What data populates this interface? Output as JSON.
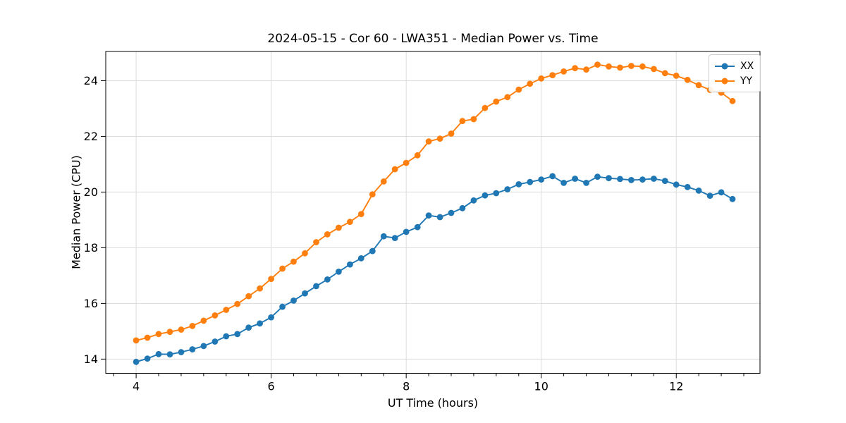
{
  "chart": {
    "title": "2024-05-15 - Cor 60 - LWA351 - Median Power vs. Time",
    "xlabel": "UT Time (hours)",
    "ylabel": "Median Power (CPU)"
  },
  "legend": {
    "items": [
      {
        "label": "XX",
        "color": "#1f77b4"
      },
      {
        "label": "YY",
        "color": "#ff7f0e"
      }
    ]
  },
  "chart_data": {
    "type": "line",
    "title": "2024-05-15 - Cor 60 - LWA351 - Median Power vs. Time",
    "xlabel": "UT Time (hours)",
    "ylabel": "Median Power (CPU)",
    "x": [
      4.0,
      4.167,
      4.333,
      4.5,
      4.667,
      4.833,
      5.0,
      5.167,
      5.333,
      5.5,
      5.667,
      5.833,
      6.0,
      6.167,
      6.333,
      6.5,
      6.667,
      6.833,
      7.0,
      7.167,
      7.333,
      7.5,
      7.667,
      7.833,
      8.0,
      8.167,
      8.333,
      8.5,
      8.667,
      8.833,
      9.0,
      9.167,
      9.333,
      9.5,
      9.667,
      9.833,
      10.0,
      10.167,
      10.333,
      10.5,
      10.667,
      10.833,
      11.0,
      11.167,
      11.333,
      11.5,
      11.667,
      11.833,
      12.0,
      12.167,
      12.333,
      12.5,
      12.667,
      12.833
    ],
    "series": [
      {
        "name": "XX",
        "color": "#1f77b4",
        "marker": "circle",
        "values": [
          13.9,
          14.02,
          14.18,
          14.17,
          14.25,
          14.35,
          14.47,
          14.63,
          14.82,
          14.9,
          15.13,
          15.28,
          15.5,
          15.88,
          16.1,
          16.36,
          16.62,
          16.86,
          17.14,
          17.4,
          17.62,
          17.88,
          18.41,
          18.35,
          18.57,
          18.74,
          19.16,
          19.1,
          19.25,
          19.42,
          19.7,
          19.88,
          19.96,
          20.1,
          20.28,
          20.36,
          20.45,
          20.57,
          20.33,
          20.48,
          20.33,
          20.55,
          20.5,
          20.47,
          20.43,
          20.45,
          20.48,
          20.4,
          20.27,
          20.18,
          20.05,
          19.87,
          19.99,
          19.75
        ]
      },
      {
        "name": "YY",
        "color": "#ff7f0e",
        "marker": "circle",
        "values": [
          14.67,
          14.77,
          14.9,
          14.98,
          15.06,
          15.19,
          15.38,
          15.57,
          15.77,
          15.98,
          16.26,
          16.54,
          16.88,
          17.25,
          17.5,
          17.8,
          18.2,
          18.48,
          18.72,
          18.93,
          19.21,
          19.92,
          20.38,
          20.82,
          21.05,
          21.32,
          21.82,
          21.92,
          22.1,
          22.55,
          22.62,
          23.02,
          23.25,
          23.41,
          23.68,
          23.89,
          24.08,
          24.2,
          24.33,
          24.45,
          24.4,
          24.58,
          24.51,
          24.47,
          24.53,
          24.51,
          24.42,
          24.27,
          24.18,
          24.03,
          23.84,
          23.67,
          23.57,
          23.27
        ]
      }
    ],
    "xlim": [
      3.55,
      13.24
    ],
    "ylim": [
      13.49,
      25.05
    ],
    "x_ticks": [
      4,
      6,
      8,
      10,
      12
    ],
    "y_ticks": [
      14,
      16,
      18,
      20,
      22,
      24
    ],
    "x_minor_step": 0.33333,
    "grid": true,
    "grid_color": "#dcdcdc",
    "spine_color": "#000000",
    "legend_position": "upper right"
  }
}
